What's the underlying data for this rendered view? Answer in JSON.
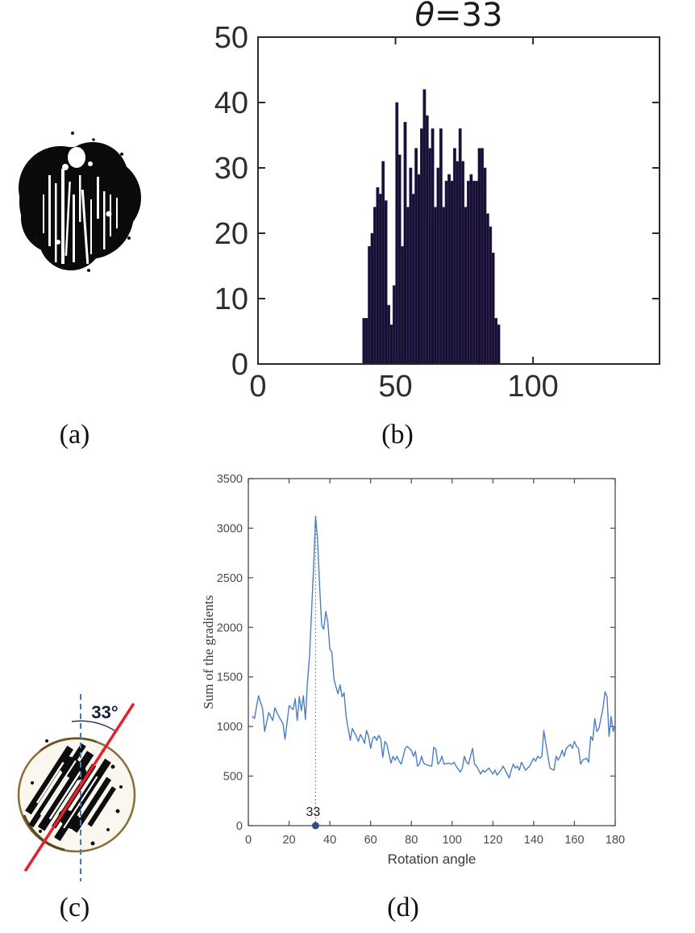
{
  "page": {
    "background": "#ffffff"
  },
  "captions": {
    "a": "(a)",
    "b": "(b)",
    "c": "(c)",
    "d": "(d)"
  },
  "panel_c": {
    "angle_label": "33°"
  },
  "style": {
    "axis_color": "#2a2a2a",
    "axis_color_light": "#4a4a4a",
    "tick_label_color": "#2e2e2e",
    "bar_fill": "#16102e",
    "bar_edge": "#45357a",
    "line_color": "#4a7fc1",
    "marker_color": "#2e4d8e",
    "dotted_color": "#5577aa",
    "red_line": "#e81f2e",
    "dashed_blue": "#4a7ab5",
    "seed_rim": "#8a6d35",
    "angle_label_color": "#16213d"
  },
  "chart_data": [
    {
      "type": "bar",
      "title": "θ=33",
      "xlabel": "",
      "ylabel": "",
      "x_first": 38,
      "bin_width": 1,
      "values": [
        7,
        7,
        18,
        20,
        24,
        27,
        26,
        31,
        25,
        9,
        6,
        12,
        40,
        32,
        18,
        37,
        24,
        30,
        26,
        33,
        29,
        36,
        42,
        38,
        33,
        36,
        24,
        30,
        36,
        24,
        28,
        29,
        28,
        33,
        31,
        36,
        31,
        24,
        28,
        29,
        28,
        28,
        33,
        33,
        30,
        23,
        21,
        17,
        7,
        6
      ],
      "xlim": [
        0,
        146
      ],
      "ylim": [
        0,
        50
      ],
      "xticks": [
        0,
        50,
        100
      ],
      "yticks": [
        0,
        10,
        20,
        30,
        40,
        50
      ],
      "grid": false,
      "legend": null
    },
    {
      "type": "line",
      "title": "",
      "xlabel": "Rotation angle",
      "ylabel": "Sum of the gradients",
      "xlim": [
        0,
        180
      ],
      "ylim": [
        0,
        3500
      ],
      "xticks": [
        0,
        20,
        40,
        60,
        80,
        100,
        120,
        140,
        160,
        180
      ],
      "yticks": [
        0,
        500,
        1000,
        1500,
        2000,
        2500,
        3000,
        3500
      ],
      "grid": false,
      "legend": null,
      "peak": {
        "x": 33,
        "y": 3120
      },
      "marker": {
        "x": 33,
        "y": 0,
        "label": "33"
      },
      "points": [
        [
          2,
          1100
        ],
        [
          3,
          1080
        ],
        [
          5,
          1310
        ],
        [
          7,
          1180
        ],
        [
          8,
          950
        ],
        [
          10,
          1140
        ],
        [
          12,
          1060
        ],
        [
          13,
          1190
        ],
        [
          15,
          1100
        ],
        [
          17,
          1030
        ],
        [
          18,
          870
        ],
        [
          20,
          1210
        ],
        [
          22,
          1170
        ],
        [
          23,
          1280
        ],
        [
          24,
          1060
        ],
        [
          25,
          1300
        ],
        [
          26,
          1160
        ],
        [
          27,
          1310
        ],
        [
          28,
          1070
        ],
        [
          29,
          1440
        ],
        [
          30,
          1700
        ],
        [
          31,
          2150
        ],
        [
          32,
          2600
        ],
        [
          33,
          3120
        ],
        [
          34,
          2880
        ],
        [
          35,
          2400
        ],
        [
          36,
          2020
        ],
        [
          37,
          1980
        ],
        [
          38,
          2160
        ],
        [
          39,
          2050
        ],
        [
          40,
          1780
        ],
        [
          41,
          1750
        ],
        [
          42,
          1480
        ],
        [
          43,
          1400
        ],
        [
          44,
          1330
        ],
        [
          45,
          1420
        ],
        [
          46,
          1300
        ],
        [
          47,
          1340
        ],
        [
          48,
          1100
        ],
        [
          50,
          860
        ],
        [
          51,
          980
        ],
        [
          52,
          940
        ],
        [
          53,
          900
        ],
        [
          54,
          850
        ],
        [
          55,
          920
        ],
        [
          56,
          880
        ],
        [
          57,
          830
        ],
        [
          58,
          960
        ],
        [
          59,
          900
        ],
        [
          60,
          780
        ],
        [
          61,
          880
        ],
        [
          62,
          900
        ],
        [
          63,
          860
        ],
        [
          64,
          910
        ],
        [
          65,
          870
        ],
        [
          66,
          690
        ],
        [
          67,
          850
        ],
        [
          68,
          820
        ],
        [
          70,
          630
        ],
        [
          71,
          700
        ],
        [
          72,
          660
        ],
        [
          73,
          700
        ],
        [
          74,
          650
        ],
        [
          75,
          620
        ],
        [
          76,
          700
        ],
        [
          77,
          780
        ],
        [
          78,
          800
        ],
        [
          79,
          780
        ],
        [
          80,
          760
        ],
        [
          81,
          700
        ],
        [
          82,
          750
        ],
        [
          83,
          600
        ],
        [
          84,
          620
        ],
        [
          85,
          700
        ],
        [
          86,
          630
        ],
        [
          88,
          610
        ],
        [
          90,
          600
        ],
        [
          91,
          790
        ],
        [
          92,
          770
        ],
        [
          93,
          620
        ],
        [
          94,
          640
        ],
        [
          95,
          700
        ],
        [
          96,
          620
        ],
        [
          98,
          630
        ],
        [
          100,
          620
        ],
        [
          101,
          640
        ],
        [
          102,
          600
        ],
        [
          104,
          540
        ],
        [
          105,
          580
        ],
        [
          106,
          700
        ],
        [
          107,
          640
        ],
        [
          108,
          620
        ],
        [
          110,
          780
        ],
        [
          111,
          620
        ],
        [
          112,
          600
        ],
        [
          114,
          520
        ],
        [
          115,
          560
        ],
        [
          116,
          540
        ],
        [
          118,
          580
        ],
        [
          120,
          520
        ],
        [
          121,
          560
        ],
        [
          122,
          510
        ],
        [
          124,
          560
        ],
        [
          125,
          600
        ],
        [
          126,
          560
        ],
        [
          128,
          480
        ],
        [
          129,
          560
        ],
        [
          130,
          620
        ],
        [
          131,
          580
        ],
        [
          132,
          600
        ],
        [
          133,
          560
        ],
        [
          134,
          640
        ],
        [
          135,
          600
        ],
        [
          136,
          560
        ],
        [
          138,
          600
        ],
        [
          140,
          680
        ],
        [
          141,
          650
        ],
        [
          142,
          700
        ],
        [
          143,
          680
        ],
        [
          144,
          700
        ],
        [
          145,
          960
        ],
        [
          146,
          820
        ],
        [
          147,
          700
        ],
        [
          148,
          580
        ],
        [
          150,
          560
        ],
        [
          151,
          700
        ],
        [
          152,
          660
        ],
        [
          153,
          700
        ],
        [
          154,
          760
        ],
        [
          155,
          700
        ],
        [
          156,
          780
        ],
        [
          158,
          820
        ],
        [
          159,
          780
        ],
        [
          160,
          850
        ],
        [
          161,
          800
        ],
        [
          162,
          780
        ],
        [
          163,
          620
        ],
        [
          164,
          660
        ],
        [
          166,
          680
        ],
        [
          167,
          640
        ],
        [
          168,
          900
        ],
        [
          169,
          860
        ],
        [
          170,
          1080
        ],
        [
          171,
          950
        ],
        [
          172,
          980
        ],
        [
          174,
          1180
        ],
        [
          175,
          1350
        ],
        [
          176,
          1300
        ],
        [
          177,
          900
        ],
        [
          178,
          1100
        ],
        [
          179,
          950
        ],
        [
          180,
          1020
        ]
      ]
    }
  ]
}
